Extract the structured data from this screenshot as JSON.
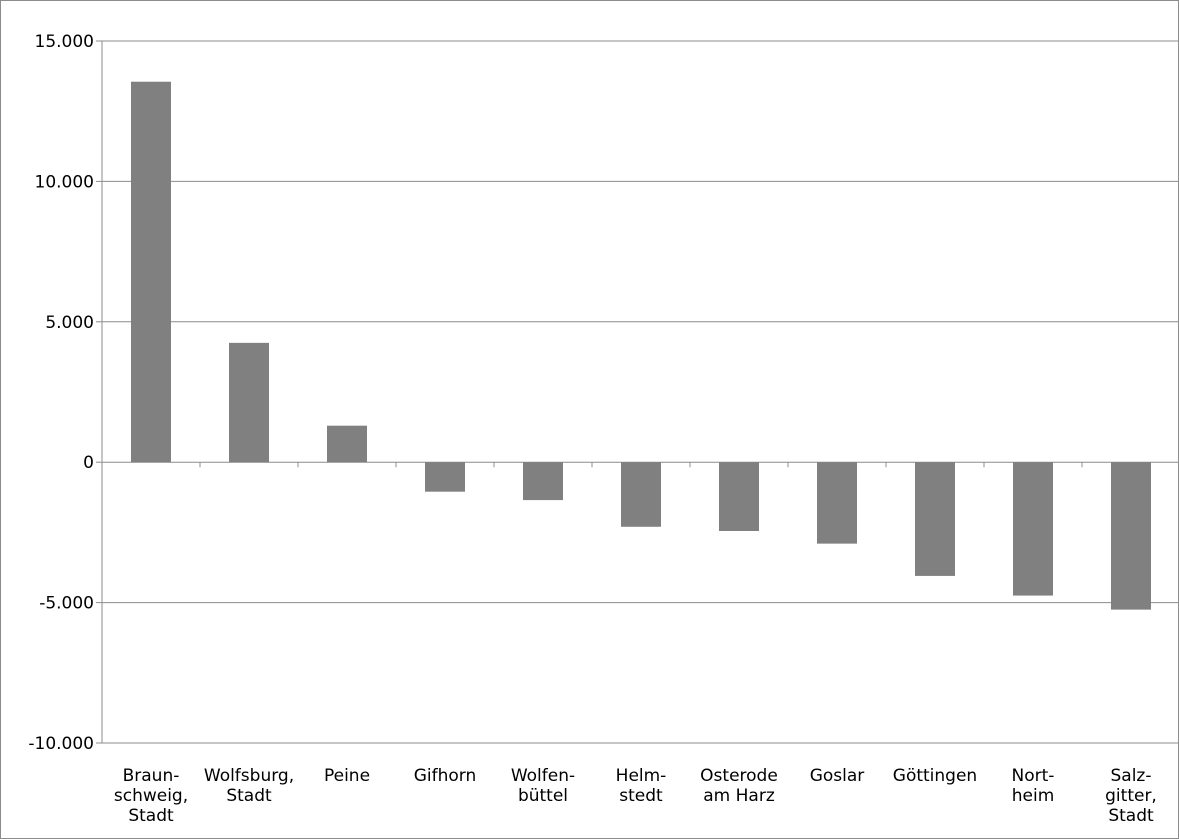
{
  "chart_data": {
    "type": "bar",
    "title": "",
    "xlabel": "",
    "ylabel": "",
    "ylim": [
      -10000,
      15000
    ],
    "yticks": [
      15000,
      10000,
      5000,
      0,
      -5000,
      -10000
    ],
    "ytick_labels": [
      "15.000",
      "10.000",
      "5.000",
      "0",
      "-5.000",
      "-10.000"
    ],
    "grid": true,
    "bar_color": "#808080",
    "categories": [
      [
        "Braun-",
        "schweig,",
        "Stadt"
      ],
      [
        "Wolfsburg,",
        "Stadt"
      ],
      [
        "Peine"
      ],
      [
        "Gifhorn"
      ],
      [
        "Wolfen-",
        "büttel"
      ],
      [
        "Helm-",
        "stedt"
      ],
      [
        "Osterode",
        "am Harz"
      ],
      [
        "Goslar"
      ],
      [
        "Göttingen"
      ],
      [
        "Nort-",
        "heim"
      ],
      [
        "Salz-",
        "gitter,",
        "Stadt"
      ]
    ],
    "values": [
      13550,
      4250,
      1300,
      -1050,
      -1350,
      -2300,
      -2450,
      -2900,
      -4050,
      -4750,
      -5250
    ]
  }
}
